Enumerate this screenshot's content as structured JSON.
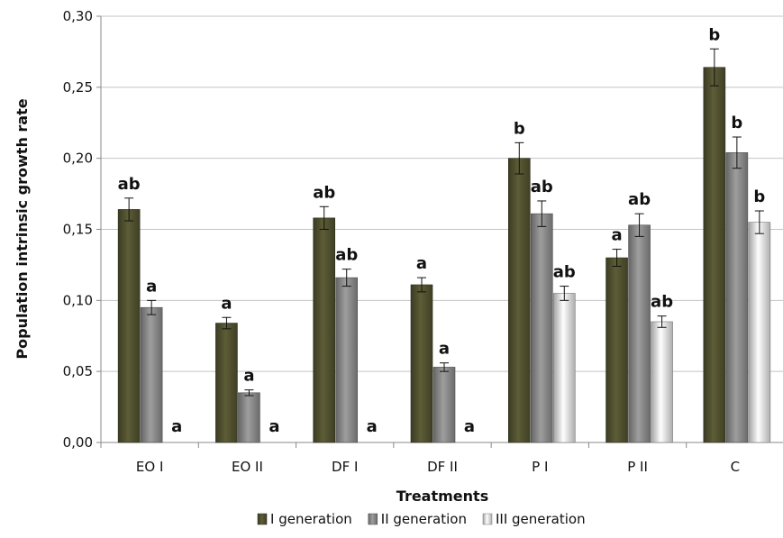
{
  "chart_data": {
    "type": "bar",
    "xlabel": "Treatments",
    "ylabel": "Population intrinsic growth rate",
    "ylim": [
      0,
      0.3
    ],
    "yticks": [
      "0,00",
      "0,05",
      "0,10",
      "0,15",
      "0,20",
      "0,25",
      "0,30"
    ],
    "grid": true,
    "legend_position": "bottom",
    "categories": [
      "EO I",
      "EO II",
      "DF I",
      "DF II",
      "P I",
      "P II",
      "C"
    ],
    "series": [
      {
        "name": "I generation",
        "color": "#4a4a2c",
        "values": [
          0.164,
          0.084,
          0.158,
          0.111,
          0.2,
          0.13,
          0.264
        ],
        "errors": [
          0.008,
          0.004,
          0.008,
          0.005,
          0.011,
          0.006,
          0.013
        ],
        "labels": [
          "ab",
          "a",
          "ab",
          "a",
          "b",
          "a",
          "b"
        ]
      },
      {
        "name": "II generation",
        "color": "#7e7e7e",
        "values": [
          0.095,
          0.035,
          0.116,
          0.053,
          0.161,
          0.153,
          0.204
        ],
        "errors": [
          0.005,
          0.002,
          0.006,
          0.003,
          0.009,
          0.008,
          0.011
        ],
        "labels": [
          "a",
          "a",
          "ab",
          "a",
          "ab",
          "ab",
          "b"
        ]
      },
      {
        "name": "III generation",
        "color": "#cbcbcb",
        "values": [
          0,
          0,
          0,
          0,
          0.105,
          0.085,
          0.155
        ],
        "errors": [
          0,
          0,
          0,
          0,
          0.005,
          0.004,
          0.008
        ],
        "labels": [
          "a",
          "a",
          "a",
          "a",
          "ab",
          "ab",
          "b"
        ]
      }
    ]
  }
}
